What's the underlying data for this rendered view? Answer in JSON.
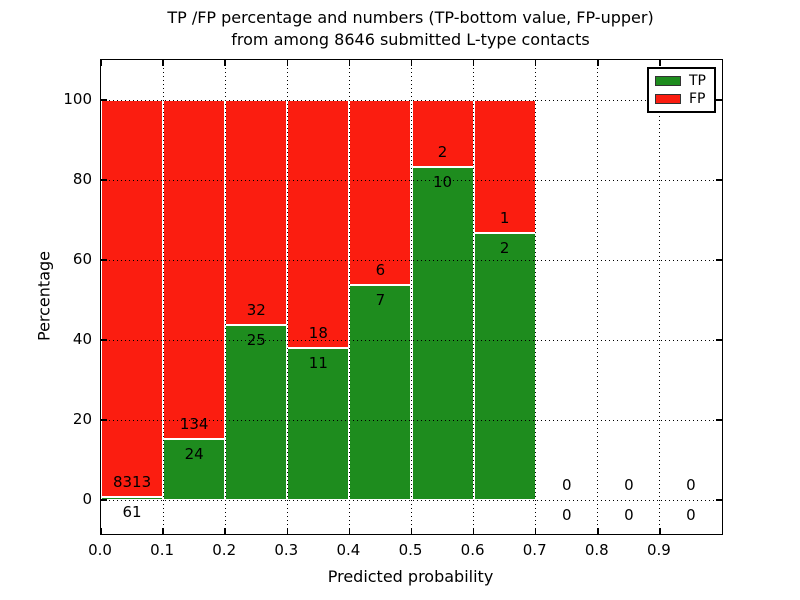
{
  "chart_data": {
    "type": "bar",
    "stacked": true,
    "normalized_to_percent": true,
    "title_line1": "TP /FP percentage and numbers (TP-bottom value, FP-upper)",
    "title_line2": "from among 8646 submitted L-type contacts",
    "xlabel": "Predicted probability",
    "ylabel": "Percentage",
    "total_contacts": 8646,
    "xlim": [
      0.0,
      1.0
    ],
    "ylim": [
      -8.5,
      110.0
    ],
    "grid": "dotted",
    "x_ticks": [
      {
        "value": 0.0,
        "label": "0.0"
      },
      {
        "value": 0.1,
        "label": "0.1"
      },
      {
        "value": 0.2,
        "label": "0.2"
      },
      {
        "value": 0.3,
        "label": "0.3"
      },
      {
        "value": 0.4,
        "label": "0.4"
      },
      {
        "value": 0.5,
        "label": "0.5"
      },
      {
        "value": 0.6,
        "label": "0.6"
      },
      {
        "value": 0.7,
        "label": "0.7"
      },
      {
        "value": 0.8,
        "label": "0.8"
      },
      {
        "value": 0.9,
        "label": "0.9"
      }
    ],
    "y_ticks": [
      {
        "value": 0,
        "label": "0"
      },
      {
        "value": 20,
        "label": "20"
      },
      {
        "value": 40,
        "label": "40"
      },
      {
        "value": 60,
        "label": "60"
      },
      {
        "value": 80,
        "label": "80"
      },
      {
        "value": 100,
        "label": "100"
      }
    ],
    "series": [
      {
        "name": "TP",
        "color": "#1e8c1e",
        "position": "bottom"
      },
      {
        "name": "FP",
        "color": "#fb1d10",
        "position": "top"
      }
    ],
    "legend": {
      "position": "upper right",
      "entries": [
        "TP",
        "FP"
      ]
    },
    "bins": [
      {
        "x0": 0.0,
        "x1": 0.1,
        "tp": 61,
        "fp": 8313,
        "tp_percent": 0.73
      },
      {
        "x0": 0.1,
        "x1": 0.2,
        "tp": 24,
        "fp": 134,
        "tp_percent": 15.19
      },
      {
        "x0": 0.2,
        "x1": 0.3,
        "tp": 25,
        "fp": 32,
        "tp_percent": 43.86
      },
      {
        "x0": 0.3,
        "x1": 0.4,
        "tp": 11,
        "fp": 18,
        "tp_percent": 37.93
      },
      {
        "x0": 0.4,
        "x1": 0.5,
        "tp": 7,
        "fp": 6,
        "tp_percent": 53.85
      },
      {
        "x0": 0.5,
        "x1": 0.6,
        "tp": 10,
        "fp": 2,
        "tp_percent": 83.33
      },
      {
        "x0": 0.6,
        "x1": 0.7,
        "tp": 2,
        "fp": 1,
        "tp_percent": 66.67
      },
      {
        "x0": 0.7,
        "x1": 0.8,
        "tp": 0,
        "fp": 0,
        "tp_percent": null
      },
      {
        "x0": 0.8,
        "x1": 0.9,
        "tp": 0,
        "fp": 0,
        "tp_percent": null
      },
      {
        "x0": 0.9,
        "x1": 1.0,
        "tp": 0,
        "fp": 0,
        "tp_percent": null
      }
    ],
    "annotation_scheme": "TP count below segment boundary, FP count above segment boundary"
  }
}
